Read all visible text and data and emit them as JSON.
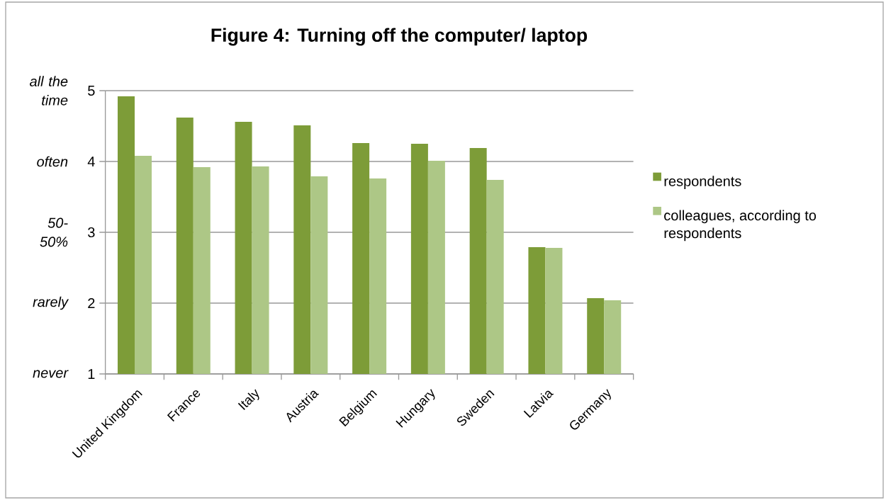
{
  "chart_data": {
    "type": "bar",
    "title": "Figure 4: Turning off the computer/ laptop",
    "categories": [
      "United Kingdom",
      "France",
      "Italy",
      "Austria",
      "Belgium",
      "Hungary",
      "Sweden",
      "Latvia",
      "Germany"
    ],
    "series": [
      {
        "name": "respondents",
        "color": "#7d9c38",
        "values": [
          4.92,
          4.62,
          4.56,
          4.51,
          4.26,
          4.25,
          4.19,
          2.79,
          2.07
        ]
      },
      {
        "name": "colleagues, according to respondents",
        "color": "#adc786",
        "values": [
          4.08,
          3.92,
          3.93,
          3.79,
          3.76,
          4.01,
          3.74,
          2.78,
          2.04
        ]
      }
    ],
    "ylim": [
      1,
      5
    ],
    "yticks": [
      1,
      2,
      3,
      4,
      5
    ],
    "grid": "y",
    "legend": "right",
    "annotations": [
      "all the time",
      "often",
      "50-50%",
      "rarely",
      "never"
    ]
  }
}
